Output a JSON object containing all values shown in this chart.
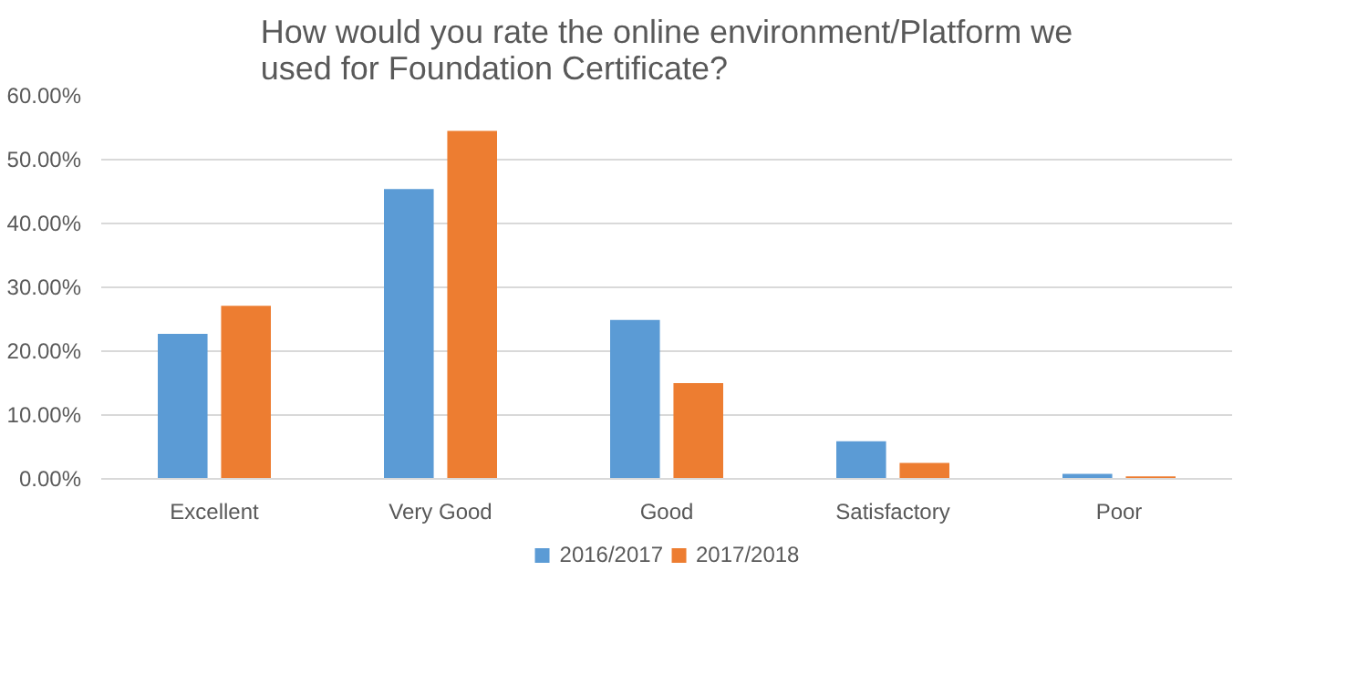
{
  "chart_data": {
    "type": "bar",
    "title": "How would you rate the online environment/Platform we\nused for Foundation Certificate?",
    "categories": [
      "Excellent",
      "Very Good",
      "Good",
      "Satisfactory",
      "Poor"
    ],
    "series": [
      {
        "name": "2016/2017",
        "color": "#5b9bd5",
        "values": [
          22.7,
          45.4,
          24.9,
          5.9,
          0.8
        ]
      },
      {
        "name": "2017/2018",
        "color": "#ed7d31",
        "values": [
          27.1,
          54.5,
          15.0,
          2.5,
          0.4
        ]
      }
    ],
    "ylim": [
      0,
      60
    ],
    "yticks": [
      {
        "value": 0,
        "label": "0.00%"
      },
      {
        "value": 10,
        "label": "10.00%"
      },
      {
        "value": 20,
        "label": "20.00%"
      },
      {
        "value": 30,
        "label": "30.00%"
      },
      {
        "value": 40,
        "label": "40.00%"
      },
      {
        "value": 50,
        "label": "50.00%"
      },
      {
        "value": 60,
        "label": "60.00%"
      }
    ],
    "grid": "y",
    "legend": "bottom"
  }
}
